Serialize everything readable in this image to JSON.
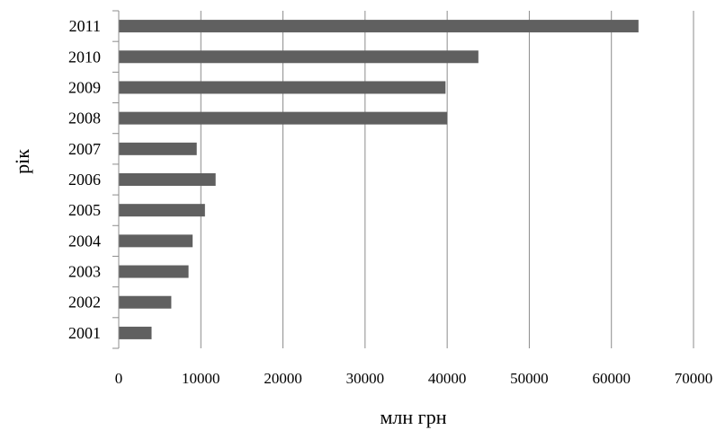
{
  "chart_data": {
    "type": "bar",
    "orientation": "horizontal",
    "categories": [
      "2001",
      "2002",
      "2003",
      "2004",
      "2005",
      "2006",
      "2007",
      "2008",
      "2009",
      "2010",
      "2011"
    ],
    "values": [
      4000,
      6400,
      8500,
      9000,
      10500,
      11800,
      9500,
      40000,
      39800,
      43800,
      63300
    ],
    "xlabel": "млн грн",
    "ylabel": "рік",
    "xlim": [
      0,
      70000
    ],
    "xticks": [
      "0",
      "10000",
      "20000",
      "30000",
      "40000",
      "50000",
      "60000",
      "70000"
    ],
    "grid": "vertical",
    "bar_color": "#606060",
    "grid_color": "#8c8c8c"
  }
}
